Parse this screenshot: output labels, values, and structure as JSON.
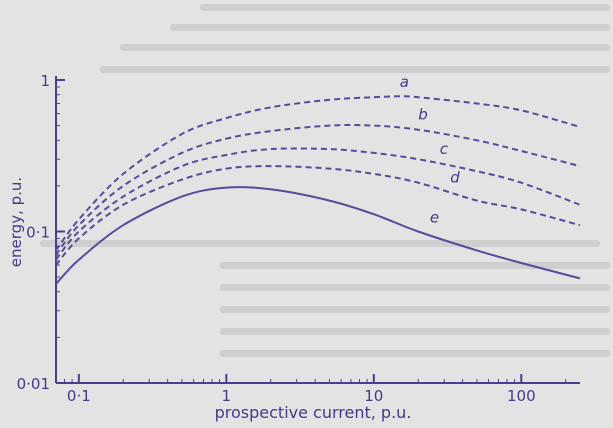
{
  "chart_data": {
    "type": "line",
    "title": "",
    "xlabel": "prospective current, p.u.",
    "ylabel": "energy, p.u.",
    "xscale": "log",
    "yscale": "log",
    "xlim": [
      0.07,
      250
    ],
    "ylim": [
      0.01,
      1
    ],
    "x_ticks": [
      {
        "value": 0.1,
        "label": "0·1"
      },
      {
        "value": 1,
        "label": "1"
      },
      {
        "value": 10,
        "label": "10"
      },
      {
        "value": 100,
        "label": "100"
      }
    ],
    "y_ticks": [
      {
        "value": 0.01,
        "label": "0·01"
      },
      {
        "value": 0.1,
        "label": "0·1"
      },
      {
        "value": 1,
        "label": "1"
      }
    ],
    "grid": false,
    "legend": "none",
    "series": [
      {
        "name": "a",
        "style": "dashed",
        "x": [
          0.07,
          0.1,
          0.2,
          0.5,
          1,
          2,
          5,
          10,
          15,
          20,
          50,
          100,
          250
        ],
        "y": [
          0.075,
          0.12,
          0.24,
          0.44,
          0.56,
          0.66,
          0.74,
          0.77,
          0.78,
          0.77,
          0.7,
          0.63,
          0.49
        ]
      },
      {
        "name": "b",
        "style": "dashed",
        "x": [
          0.07,
          0.1,
          0.2,
          0.5,
          1,
          2,
          5,
          10,
          20,
          50,
          100,
          250
        ],
        "y": [
          0.07,
          0.11,
          0.2,
          0.33,
          0.41,
          0.46,
          0.5,
          0.5,
          0.47,
          0.4,
          0.34,
          0.27
        ]
      },
      {
        "name": "c",
        "style": "dashed",
        "x": [
          0.07,
          0.1,
          0.2,
          0.5,
          1,
          2,
          5,
          10,
          20,
          50,
          100,
          250
        ],
        "y": [
          0.065,
          0.1,
          0.17,
          0.27,
          0.32,
          0.35,
          0.35,
          0.33,
          0.3,
          0.25,
          0.21,
          0.15
        ]
      },
      {
        "name": "d",
        "style": "dashed",
        "x": [
          0.07,
          0.1,
          0.2,
          0.5,
          1,
          2,
          5,
          10,
          20,
          50,
          100,
          250
        ],
        "y": [
          0.06,
          0.09,
          0.15,
          0.22,
          0.26,
          0.27,
          0.26,
          0.24,
          0.21,
          0.16,
          0.14,
          0.11
        ]
      },
      {
        "name": "e",
        "style": "solid",
        "x": [
          0.07,
          0.1,
          0.2,
          0.5,
          1,
          2,
          5,
          10,
          20,
          50,
          100,
          250
        ],
        "y": [
          0.045,
          0.065,
          0.11,
          0.17,
          0.195,
          0.19,
          0.16,
          0.13,
          0.1,
          0.075,
          0.062,
          0.049
        ]
      }
    ],
    "colors": {
      "curve": "#5a4a9a",
      "axis": "#4b3d8f",
      "text": "#453a85",
      "background": "#e3e3e3",
      "bleed": "#cfcfcf"
    }
  }
}
